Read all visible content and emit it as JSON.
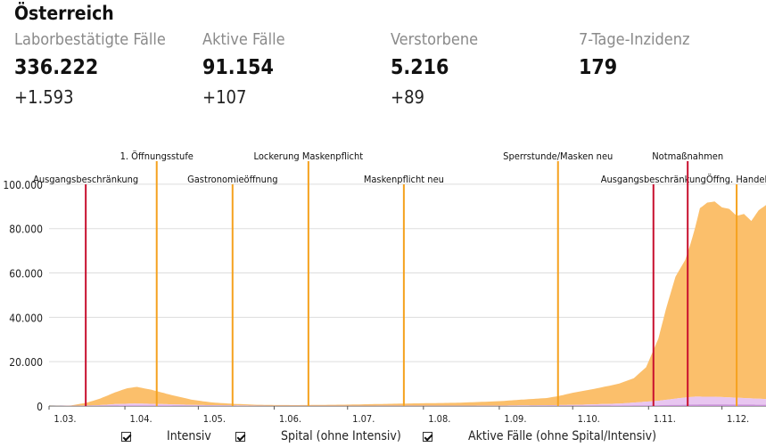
{
  "header": {
    "country": "Österreich"
  },
  "stats": [
    {
      "label": "Laborbestätigte Fälle",
      "value": "336.222",
      "delta": "+1.593"
    },
    {
      "label": "Aktive Fälle",
      "value": "91.154",
      "delta": "+107"
    },
    {
      "label": "Verstorbene",
      "value": "5.216",
      "delta": "+89"
    },
    {
      "label": "7-Tage-Inzidenz",
      "value": "179",
      "delta": ""
    }
  ],
  "legend": [
    {
      "label": "Intensiv",
      "checked": true
    },
    {
      "label": "Spital (ohne Intensiv)",
      "checked": true
    },
    {
      "label": "Aktive Fälle (ohne Spital/Intensiv)",
      "checked": true
    }
  ],
  "colors": {
    "aktive": "#fbbf6b",
    "spital": "#e8c6f0",
    "intensiv": "#c78fd6",
    "red_line": "#c8102e",
    "orange_line": "#f5a21f",
    "grid": "#dddddd"
  },
  "chart_data": {
    "type": "area",
    "stacked": true,
    "x_start": "2020-03-01",
    "x_end": "2020-12-19",
    "xticks": [
      {
        "date": "2020-03-01",
        "label": "1.03."
      },
      {
        "date": "2020-04-01",
        "label": "1.04."
      },
      {
        "date": "2020-05-01",
        "label": "1.05."
      },
      {
        "date": "2020-06-01",
        "label": "1.06."
      },
      {
        "date": "2020-07-01",
        "label": "1.07."
      },
      {
        "date": "2020-08-01",
        "label": "1.08."
      },
      {
        "date": "2020-09-01",
        "label": "1.09."
      },
      {
        "date": "2020-10-01",
        "label": "1.10."
      },
      {
        "date": "2020-11-01",
        "label": "1.11."
      },
      {
        "date": "2020-12-01",
        "label": "1.12."
      }
    ],
    "yticks": [
      0,
      20000,
      40000,
      60000,
      80000,
      100000
    ],
    "ytick_labels": [
      "0",
      "20.000",
      "40.000",
      "60.000",
      "80.000",
      "100.000"
    ],
    "ylim": [
      0,
      110000
    ],
    "grid": true,
    "series": [
      {
        "name": "Aktive Fälle (ohne Spital/Intensiv)",
        "x": [
          "2020-03-01",
          "2020-03-10",
          "2020-03-16",
          "2020-03-22",
          "2020-03-28",
          "2020-04-02",
          "2020-04-06",
          "2020-04-12",
          "2020-04-20",
          "2020-04-28",
          "2020-05-06",
          "2020-05-15",
          "2020-05-25",
          "2020-06-10",
          "2020-07-01",
          "2020-07-15",
          "2020-08-01",
          "2020-08-15",
          "2020-09-01",
          "2020-09-10",
          "2020-09-20",
          "2020-09-25",
          "2020-10-01",
          "2020-10-10",
          "2020-10-20",
          "2020-10-26",
          "2020-10-31",
          "2020-11-05",
          "2020-11-08",
          "2020-11-12",
          "2020-11-16",
          "2020-11-18",
          "2020-11-20",
          "2020-11-22",
          "2020-11-25",
          "2020-11-28",
          "2020-12-01",
          "2020-12-04",
          "2020-12-07",
          "2020-12-10",
          "2020-12-13",
          "2020-12-16",
          "2020-12-19"
        ],
        "values": [
          0,
          100,
          1200,
          3000,
          5300,
          7000,
          7500,
          6300,
          4200,
          2400,
          1300,
          700,
          400,
          300,
          500,
          800,
          1100,
          1300,
          2000,
          2600,
          3200,
          4000,
          5500,
          7000,
          9000,
          11000,
          15500,
          28000,
          40500,
          55000,
          62000,
          68500,
          76000,
          85000,
          87500,
          88000,
          85500,
          85000,
          82000,
          83000,
          80000,
          85000,
          87500
        ]
      },
      {
        "name": "Spital (ohne Intensiv)",
        "x": [
          "2020-03-01",
          "2020-03-20",
          "2020-03-28",
          "2020-04-05",
          "2020-04-15",
          "2020-05-01",
          "2020-06-01",
          "2020-09-01",
          "2020-10-01",
          "2020-10-20",
          "2020-11-05",
          "2020-11-15",
          "2020-11-20",
          "2020-11-28",
          "2020-12-05",
          "2020-12-12",
          "2020-12-19"
        ],
        "values": [
          0,
          200,
          700,
          900,
          700,
          350,
          80,
          150,
          400,
          900,
          2000,
          3200,
          3600,
          3500,
          3200,
          2900,
          2600
        ]
      },
      {
        "name": "Intensiv",
        "x": [
          "2020-03-01",
          "2020-03-20",
          "2020-04-05",
          "2020-04-15",
          "2020-05-01",
          "2020-06-01",
          "2020-09-01",
          "2020-10-01",
          "2020-10-20",
          "2020-11-05",
          "2020-11-15",
          "2020-11-20",
          "2020-11-28",
          "2020-12-05",
          "2020-12-12",
          "2020-12-19"
        ],
        "values": [
          0,
          80,
          250,
          220,
          100,
          20,
          40,
          90,
          200,
          380,
          550,
          650,
          700,
          650,
          600,
          550
        ]
      }
    ],
    "annotations": [
      {
        "date": "2020-03-16",
        "label": "Ausgangsbeschränkung",
        "color": "red",
        "level": 2
      },
      {
        "date": "2020-04-14",
        "label": "1. Öffnungsstufe",
        "color": "orange",
        "level": 1
      },
      {
        "date": "2020-05-15",
        "label": "Gastronomieöffnung",
        "color": "orange",
        "level": 2
      },
      {
        "date": "2020-06-15",
        "label": "Lockerung Maskenpflicht",
        "color": "orange",
        "level": 1
      },
      {
        "date": "2020-07-24",
        "label": "Maskenpflicht neu",
        "color": "orange",
        "level": 2
      },
      {
        "date": "2020-09-25",
        "label": "Sperrstunde/Masken neu",
        "color": "orange",
        "level": 1
      },
      {
        "date": "2020-11-03",
        "label": "Ausgangsbeschränkung",
        "color": "red",
        "level": 2
      },
      {
        "date": "2020-11-17",
        "label": "Notmaßnahmen",
        "color": "red",
        "level": 1
      },
      {
        "date": "2020-12-07",
        "label": "Öffng. Handel",
        "color": "orange",
        "level": 2
      }
    ]
  }
}
